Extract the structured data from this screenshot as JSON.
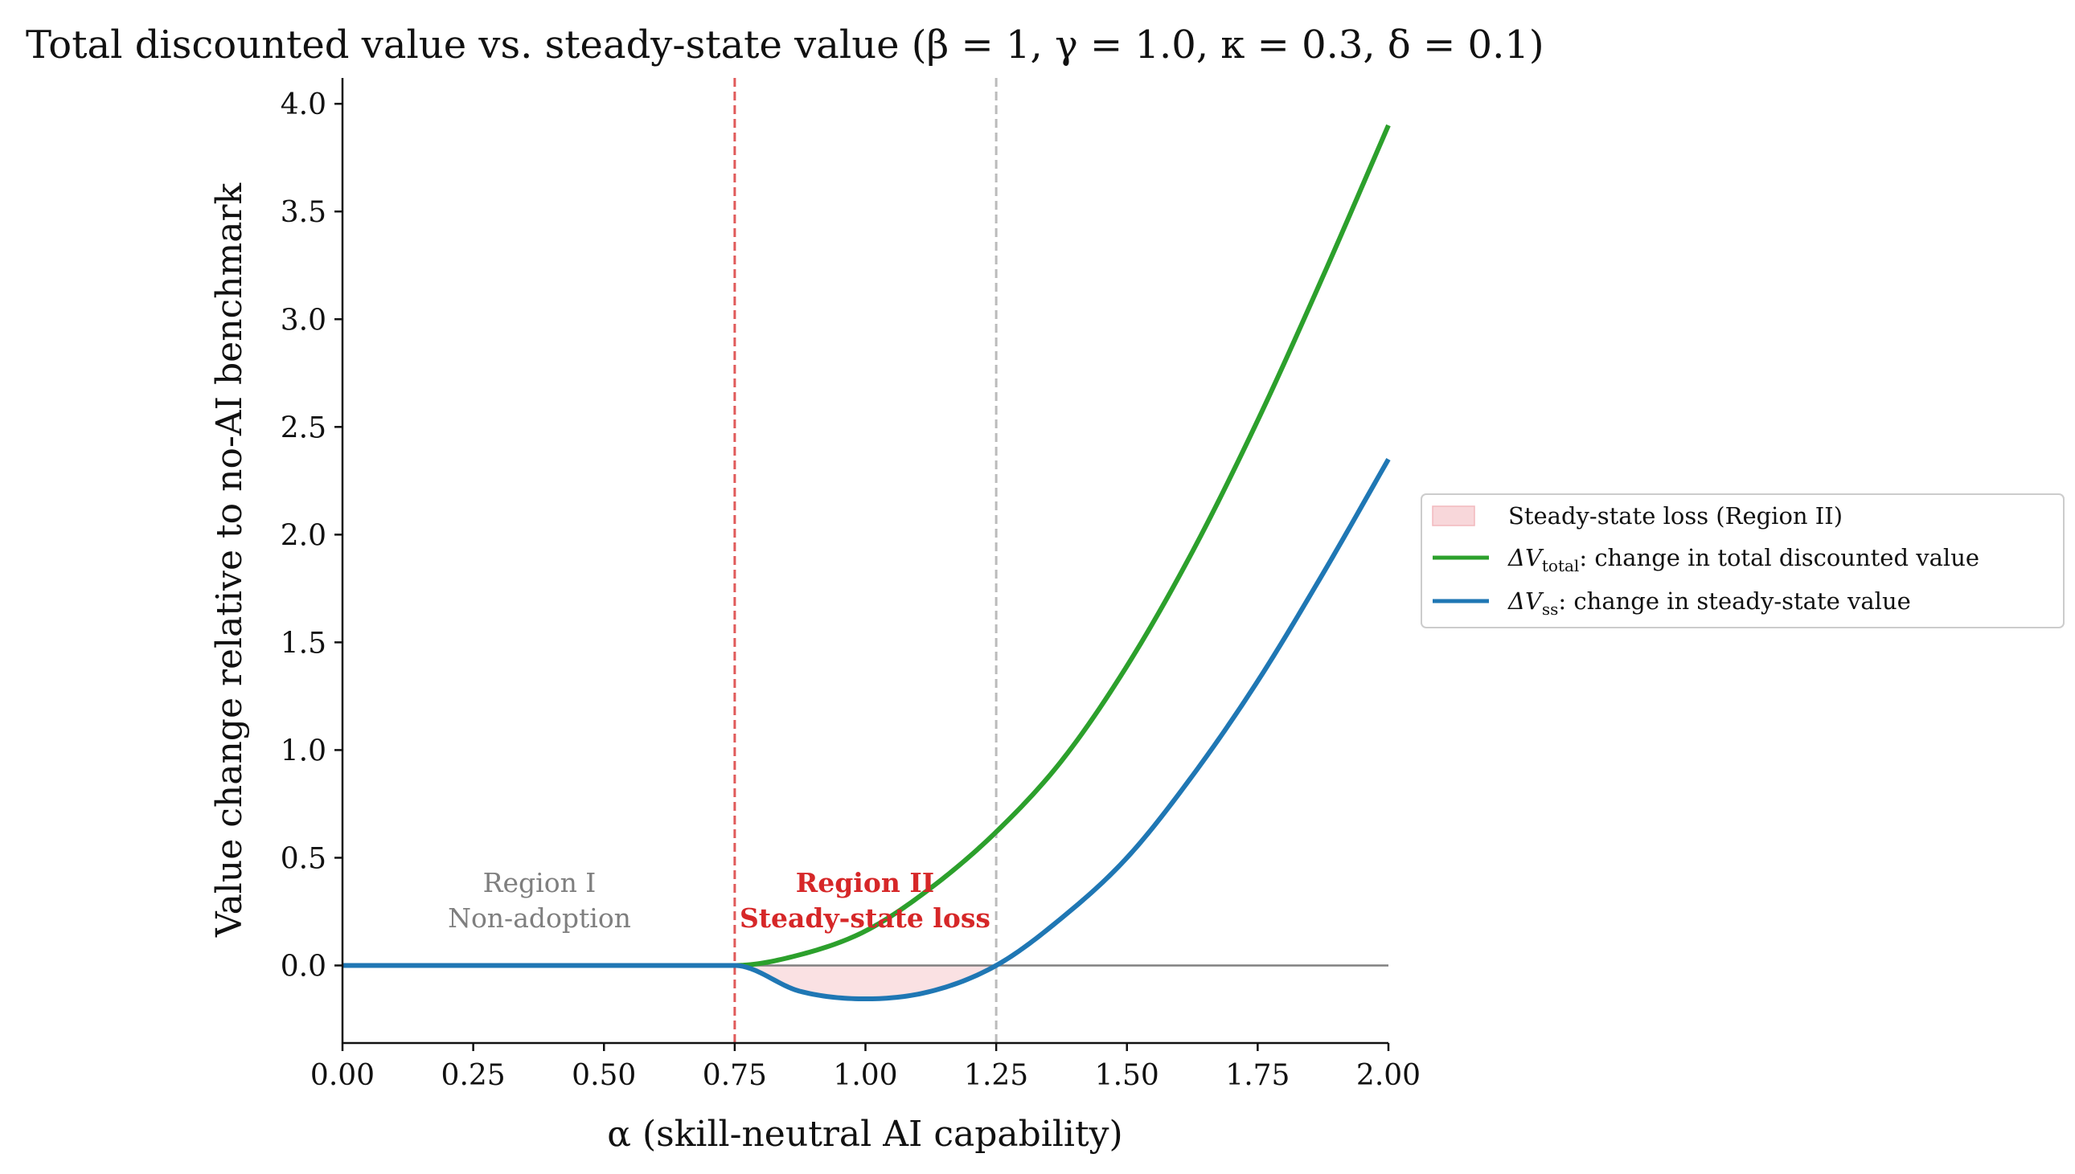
{
  "chart_data": {
    "type": "line",
    "title": "Total discounted value vs. steady-state value (β = 1, γ = 1.0, κ = 0.3, δ = 0.1)",
    "xlabel": "α (skill-neutral AI capability)",
    "ylabel": "Value change relative to no-AI benchmark",
    "xlim": [
      0.0,
      2.0
    ],
    "ylim": [
      -0.36,
      4.12
    ],
    "xticks": [
      "0.00",
      "0.25",
      "0.50",
      "0.75",
      "1.00",
      "1.25",
      "1.50",
      "1.75",
      "2.00"
    ],
    "yticks": [
      "0.0",
      "0.5",
      "1.0",
      "1.5",
      "2.0",
      "2.5",
      "3.0",
      "3.5",
      "4.0"
    ],
    "x": [
      0.0,
      0.25,
      0.5,
      0.75,
      0.875,
      1.0,
      1.125,
      1.25,
      1.375,
      1.5,
      1.625,
      1.75,
      1.875,
      2.0
    ],
    "series": [
      {
        "name": "ΔV_total: change in total discounted value",
        "color": "#2ca02c",
        "values": [
          0.0,
          0.0,
          0.0,
          0.0,
          0.05,
          0.16,
          0.36,
          0.62,
          0.95,
          1.39,
          1.92,
          2.53,
          3.2,
          3.9
        ]
      },
      {
        "name": "ΔV_ss: change in steady-state value",
        "color": "#1f77b4",
        "values": [
          0.0,
          0.0,
          0.0,
          0.0,
          -0.12,
          -0.155,
          -0.12,
          0.0,
          0.22,
          0.5,
          0.88,
          1.32,
          1.82,
          2.35
        ]
      }
    ],
    "fill_region": {
      "name": "Steady-state loss (Region II)",
      "x_from": 0.75,
      "x_to": 1.25,
      "color": "#f8d7da"
    },
    "vlines": [
      {
        "x": 0.75,
        "color": "#e05a5a"
      },
      {
        "x": 1.25,
        "color": "#bbbbbb"
      }
    ],
    "hline": {
      "y": 0.0,
      "color": "#808080"
    },
    "annotations": {
      "region1_line1": "Region I",
      "region1_line2": "Non-adoption",
      "region2_line1": "Region II",
      "region2_line2": "Steady-state loss"
    },
    "legend": {
      "location": "center-right-outside",
      "entries": [
        {
          "label": "Steady-state loss (Region II)"
        },
        {
          "prefix": "ΔV",
          "sub": "total",
          "suffix": ": change in total discounted value"
        },
        {
          "prefix": "ΔV",
          "sub": "ss",
          "suffix": ": change in steady-state value"
        }
      ]
    }
  }
}
